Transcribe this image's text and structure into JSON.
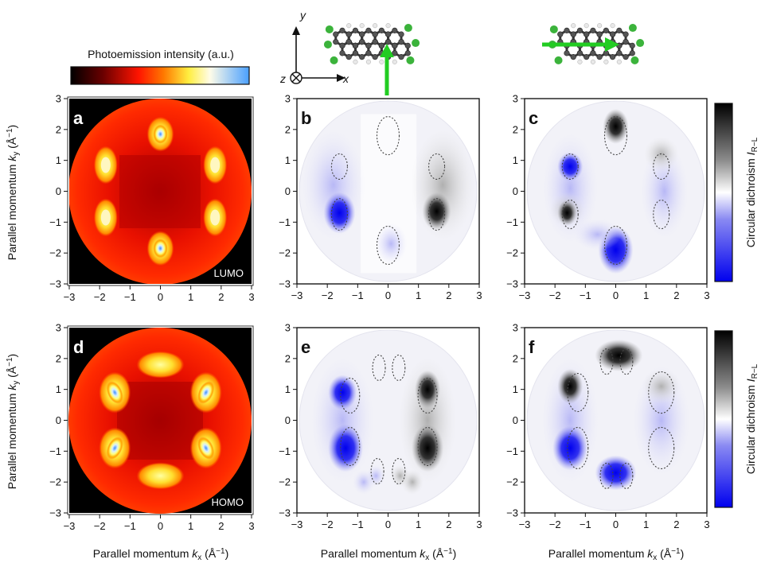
{
  "colorbar_top": {
    "label": "Photoemission intensity (a.u.)"
  },
  "axes": {
    "tick_min": -3,
    "tick_max": 3,
    "ticks": [
      "−3",
      "−2",
      "−1",
      "0",
      "1",
      "2",
      "3"
    ],
    "ylabel": {
      "prefix": "Parallel momentum ",
      "var": "k",
      "sub": "y",
      "unit": " (Å",
      "sup": "−1",
      "close": ")"
    },
    "xlabel": {
      "prefix": "Parallel momentum ",
      "var": "k",
      "sub": "x",
      "unit": " (Å",
      "sup": "−1",
      "close": ")"
    }
  },
  "dichroism_bar": {
    "prefix": "Circular dichroism ",
    "var": "I",
    "sub": "R−L"
  },
  "coord_axes": {
    "y": "y",
    "z": "z",
    "x": "x"
  },
  "panels": [
    {
      "id": "a",
      "orbital": "LUMO",
      "kind": "intensity"
    },
    {
      "id": "b",
      "kind": "dichroism"
    },
    {
      "id": "c",
      "kind": "dichroism"
    },
    {
      "id": "d",
      "orbital": "HOMO",
      "kind": "intensity"
    },
    {
      "id": "e",
      "kind": "dichroism"
    },
    {
      "id": "f",
      "kind": "dichroism"
    }
  ],
  "colors": {
    "intensity_scale": [
      "#000000",
      "#8b0000",
      "#ff1a00",
      "#ff7a00",
      "#ffee55",
      "#fffbe0",
      "#4aa3ff"
    ],
    "dichroism_scale": [
      "#0000ee",
      "#7878f0",
      "#ffffff",
      "#9a9a9a",
      "#000000"
    ],
    "arrow": "#22cc22",
    "molecule_carbon": "#3a3a3a",
    "molecule_chlorine": "#3bb33b"
  },
  "chart_data": [
    {
      "type": "heatmap",
      "panel": "a",
      "title": "LUMO",
      "x": "k_x (Å^-1)",
      "y": "k_y (Å^-1)",
      "xlim": [
        -3,
        3
      ],
      "ylim": [
        -3,
        3
      ],
      "lobes": [
        [
          0,
          1.85
        ],
        [
          0,
          -1.85
        ],
        [
          -1.8,
          0.85
        ],
        [
          1.8,
          0.85
        ],
        [
          -1.8,
          -0.85
        ],
        [
          1.8,
          -0.85
        ]
      ]
    },
    {
      "type": "heatmap",
      "panel": "b",
      "x": "k_x",
      "y": "k_y",
      "xlim": [
        -3,
        3
      ],
      "ylim": [
        -3,
        3
      ],
      "lobes": [
        {
          "x": -1.6,
          "y": -0.7,
          "sign": "R<L (blue)"
        },
        {
          "x": 1.6,
          "y": -0.6,
          "sign": "R>L (black)"
        }
      ]
    },
    {
      "type": "heatmap",
      "panel": "c",
      "x": "k_x",
      "y": "k_y",
      "xlim": [
        -3,
        3
      ],
      "ylim": [
        -3,
        3
      ],
      "lobes": [
        {
          "x": 0,
          "y": 2.1,
          "sign": "black"
        },
        {
          "x": 0,
          "y": -1.9,
          "sign": "blue"
        },
        {
          "x": -1.5,
          "y": 0.8,
          "sign": "blue"
        },
        {
          "x": -1.6,
          "y": -0.7,
          "sign": "black"
        }
      ]
    },
    {
      "type": "heatmap",
      "panel": "d",
      "title": "HOMO",
      "x": "k_x (Å^-1)",
      "y": "k_y (Å^-1)",
      "xlim": [
        -3,
        3
      ],
      "ylim": [
        -3,
        3
      ],
      "lobes": [
        [
          -1.5,
          0.9
        ],
        [
          1.5,
          0.9
        ],
        [
          -1.5,
          -0.9
        ],
        [
          1.5,
          -0.9
        ],
        [
          0,
          1.8
        ],
        [
          0,
          -1.8
        ]
      ]
    },
    {
      "type": "heatmap",
      "panel": "e",
      "x": "k_x",
      "y": "k_y",
      "xlim": [
        -3,
        3
      ],
      "ylim": [
        -3,
        3
      ],
      "lobes": [
        {
          "x": -1.4,
          "y": -0.9,
          "sign": "blue"
        },
        {
          "x": 1.3,
          "y": -0.9,
          "sign": "black"
        },
        {
          "x": -1.5,
          "y": 0.9,
          "sign": "blue"
        },
        {
          "x": 1.3,
          "y": 0.9,
          "sign": "black"
        }
      ]
    },
    {
      "type": "heatmap",
      "panel": "f",
      "x": "k_x",
      "y": "k_y",
      "xlim": [
        -3,
        3
      ],
      "ylim": [
        -3,
        3
      ],
      "lobes": [
        {
          "x": 0.1,
          "y": 2.1,
          "sign": "black"
        },
        {
          "x": 0,
          "y": -1.7,
          "sign": "blue"
        },
        {
          "x": -1.5,
          "y": 1.1,
          "sign": "black"
        },
        {
          "x": -1.5,
          "y": -0.9,
          "sign": "blue"
        }
      ]
    }
  ]
}
